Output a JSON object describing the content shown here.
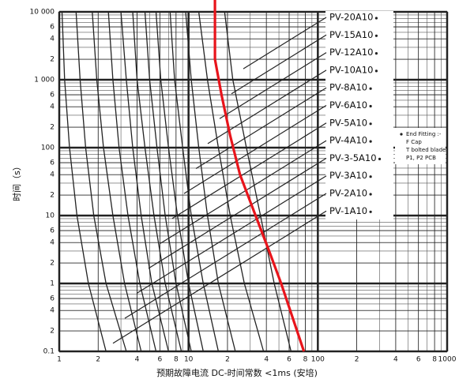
{
  "chart_data": {
    "type": "line",
    "log_x": true,
    "log_y": true,
    "grid": true,
    "x_label": "预期故障电流 DC-时间常数 <1ms (安培)",
    "y_label": "时间（s）",
    "xlim": [
      1,
      1000
    ],
    "ylim": [
      0.1,
      10000
    ],
    "xticks": [
      1,
      {
        "value": 2,
        "label": "2"
      },
      {
        "value": 4,
        "label": "4"
      },
      {
        "value": 6,
        "label": "6"
      },
      {
        "value": 8,
        "label": "8"
      },
      10,
      {
        "value": 20,
        "label": "2"
      },
      {
        "value": 40,
        "label": "4"
      },
      {
        "value": 60,
        "label": "6"
      },
      {
        "value": 80,
        "label": "8"
      },
      100,
      {
        "value": 200,
        "label": "2"
      },
      {
        "value": 400,
        "label": "4"
      },
      {
        "value": 600,
        "label": "6"
      },
      {
        "value": 800,
        "label": "8"
      },
      1000
    ],
    "yticks": [
      0.1,
      {
        "value": 0.2,
        "label": "2"
      },
      {
        "value": 0.4,
        "label": "4"
      },
      {
        "value": 0.6,
        "label": "6"
      },
      1,
      {
        "value": 2,
        "label": "2"
      },
      {
        "value": 4,
        "label": "4"
      },
      {
        "value": 6,
        "label": "6"
      },
      10,
      {
        "value": 20,
        "label": "2"
      },
      {
        "value": 40,
        "label": "4"
      },
      {
        "value": 60,
        "label": "6"
      },
      100,
      {
        "value": 200,
        "label": "2"
      },
      {
        "value": 400,
        "label": "4"
      },
      {
        "value": 600,
        "label": "6"
      },
      {
        "value": 1000,
        "label": "1 000"
      },
      {
        "value": 2000,
        "label": "2"
      },
      {
        "value": 4000,
        "label": "4"
      },
      {
        "value": 6000,
        "label": "6"
      },
      {
        "value": 10000,
        "label": "10 000"
      }
    ],
    "legend_note": [
      "End Fitting :-",
      "F Cap",
      "T bolted blade",
      "P1, P2 PCB"
    ],
    "series": [
      {
        "name": "PV-1A10",
        "color": "#222222",
        "x": [
          1.05,
          1.1,
          1.2,
          1.37,
          1.68,
          2.3
        ],
        "values": [
          10000,
          1000,
          100,
          10,
          1,
          0.1
        ]
      },
      {
        "name": "PV-2A10",
        "color": "#222222",
        "x": [
          1.35,
          1.45,
          1.6,
          1.85,
          2.3,
          3.3
        ],
        "values": [
          10000,
          1000,
          100,
          10,
          1,
          0.1
        ]
      },
      {
        "name": "PV-3A10",
        "color": "#222222",
        "x": [
          1.8,
          1.95,
          2.2,
          2.6,
          3.2,
          4.3
        ],
        "values": [
          10000,
          1000,
          100,
          10,
          1,
          0.1
        ]
      },
      {
        "name": "PV-3-5A10",
        "color": "#222222",
        "x": [
          2.4,
          2.6,
          2.9,
          3.4,
          4.2,
          5.6
        ],
        "values": [
          10000,
          1000,
          100,
          10,
          1,
          0.1
        ]
      },
      {
        "name": "PV-4A10",
        "color": "#222222",
        "x": [
          3.0,
          3.3,
          3.7,
          4.3,
          5.2,
          7.0
        ],
        "values": [
          10000,
          1000,
          100,
          10,
          1,
          0.1
        ]
      },
      {
        "name": "PV-5A10",
        "color": "#222222",
        "x": [
          3.7,
          4.0,
          4.6,
          5.4,
          6.6,
          8.8
        ],
        "values": [
          10000,
          1000,
          100,
          10,
          1,
          0.1
        ]
      },
      {
        "name": "PV-6A10",
        "color": "#222222",
        "x": [
          4.6,
          5.0,
          5.7,
          6.6,
          8.0,
          10.5
        ],
        "values": [
          10000,
          1000,
          100,
          10,
          1,
          0.1
        ]
      },
      {
        "name": "PV-8A10",
        "color": "#222222",
        "x": [
          5.6,
          6.1,
          7.0,
          8.2,
          10,
          13
        ],
        "values": [
          10000,
          1000,
          100,
          10,
          1,
          0.1
        ]
      },
      {
        "name": "PV-10A10",
        "color": "#222222",
        "x": [
          7.2,
          7.8,
          9.0,
          10.5,
          13,
          17
        ],
        "values": [
          10000,
          1000,
          100,
          10,
          1,
          0.1
        ]
      },
      {
        "name": "PV-12A10",
        "color": "#222222",
        "x": [
          9.5,
          10.5,
          12,
          14,
          17,
          23
        ],
        "values": [
          10000,
          1000,
          100,
          10,
          1,
          0.1
        ]
      },
      {
        "name": "PV-15A10",
        "color": "#222222",
        "x": [
          12,
          14,
          17,
          21,
          27,
          38
        ],
        "values": [
          10000,
          1000,
          100,
          10,
          1,
          0.1
        ]
      },
      {
        "name": "PV-20A10",
        "color": "#222222",
        "x": [
          19,
          22,
          28,
          36,
          46,
          62
        ],
        "values": [
          10000,
          1000,
          100,
          10,
          1,
          0.1
        ]
      },
      {
        "color": "#e8141b",
        "x": [
          16,
          16,
          18,
          21,
          25,
          33,
          42,
          52,
          78
        ],
        "values": [
          10000,
          2000,
          600,
          150,
          40,
          10,
          3,
          1,
          0.1
        ]
      }
    ]
  }
}
